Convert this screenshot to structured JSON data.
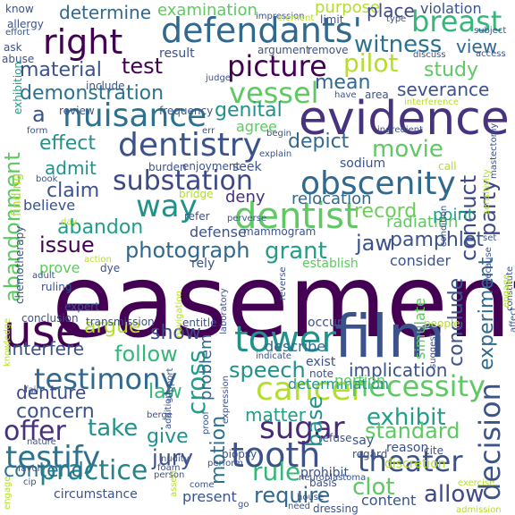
{
  "words": [
    {
      "text": "easement",
      "color": "#440154"
    },
    {
      "text": "evidence",
      "color": "#46327e"
    },
    {
      "text": "film",
      "color": "#3b528b"
    },
    {
      "text": "use",
      "color": "#440154"
    },
    {
      "text": "tower",
      "color": "#21918c"
    },
    {
      "text": "defendants'",
      "color": "#31688e"
    },
    {
      "text": "dentist",
      "color": "#5ec962"
    },
    {
      "text": "right",
      "color": "#440154"
    },
    {
      "text": "cancer",
      "color": "#b5de2b"
    },
    {
      "text": "tooth",
      "color": "#3b528b"
    },
    {
      "text": "obscenity",
      "color": "#31688e"
    },
    {
      "text": "dentistry",
      "color": "#3b528b"
    },
    {
      "text": "nuisance",
      "color": "#2c728e"
    },
    {
      "text": "picture",
      "color": "#440154"
    },
    {
      "text": "necessity",
      "color": "#5ec962"
    },
    {
      "text": "theater",
      "color": "#3b528b"
    },
    {
      "text": "sugar",
      "color": "#482878"
    },
    {
      "text": "testify",
      "color": "#2c728e"
    },
    {
      "text": "substation",
      "color": "#3e4989"
    },
    {
      "text": "way",
      "color": "#21918c"
    },
    {
      "text": "vessel",
      "color": "#5ec962"
    },
    {
      "text": "breast",
      "color": "#35b779"
    },
    {
      "text": "decision",
      "color": "#3b528b"
    },
    {
      "text": "testimony",
      "color": "#31688e"
    },
    {
      "text": "practice",
      "color": "#26828e"
    },
    {
      "text": "cross",
      "color": "#1f9e89"
    },
    {
      "text": "photograph",
      "color": "#31688e"
    },
    {
      "text": "grant",
      "color": "#1f9e89"
    },
    {
      "text": "exhibit",
      "color": "#1f9e89"
    },
    {
      "text": "abandonment",
      "color": "#5ec962"
    },
    {
      "text": "experiment",
      "color": "#31688e"
    },
    {
      "text": "conduct",
      "color": "#3e4989"
    },
    {
      "text": "pilot",
      "color": "#b5de2b"
    },
    {
      "text": "witness",
      "color": "#2c728e"
    },
    {
      "text": "rule",
      "color": "#35b779"
    },
    {
      "text": "allow",
      "color": "#3e4989"
    },
    {
      "text": "movie",
      "color": "#5ec962"
    },
    {
      "text": "speech",
      "color": "#21918c"
    },
    {
      "text": "offer",
      "color": "#46327e"
    },
    {
      "text": "follow",
      "color": "#35b779"
    },
    {
      "text": "party",
      "color": "#3e4989"
    },
    {
      "text": "demonstration",
      "color": "#2c728e"
    },
    {
      "text": "clot",
      "color": "#5ec962"
    },
    {
      "text": "study",
      "color": "#5ec962"
    },
    {
      "text": "material",
      "color": "#3b528b"
    },
    {
      "text": "test",
      "color": "#440154"
    },
    {
      "text": "genital",
      "color": "#21918c"
    },
    {
      "text": "effect",
      "color": "#21918c"
    },
    {
      "text": "claim",
      "color": "#3b528b"
    },
    {
      "text": "abandon",
      "color": "#1f9e89"
    },
    {
      "text": "issue",
      "color": "#440154"
    },
    {
      "text": "record",
      "color": "#6ccd5a"
    },
    {
      "text": "pamphlet",
      "color": "#3b528b"
    },
    {
      "text": "depict",
      "color": "#31688e"
    },
    {
      "text": "argue",
      "color": "#b5de2b"
    },
    {
      "text": "show",
      "color": "#3e4989"
    },
    {
      "text": "concern",
      "color": "#3b528b"
    },
    {
      "text": "take",
      "color": "#21918c"
    },
    {
      "text": "law",
      "color": "#35b779"
    },
    {
      "text": "give",
      "color": "#21918c"
    },
    {
      "text": "jury",
      "color": "#3b528b"
    },
    {
      "text": "require",
      "color": "#31688e"
    },
    {
      "text": "contend",
      "color": "#2c728e"
    },
    {
      "text": "matter",
      "color": "#1f9e89"
    },
    {
      "text": "standard",
      "color": "#5ec962"
    },
    {
      "text": "denture",
      "color": "#3e4989"
    },
    {
      "text": "interfere",
      "color": "#3b528b"
    },
    {
      "text": "motion",
      "color": "#2c728e"
    },
    {
      "text": "base",
      "color": "#21918c"
    },
    {
      "text": "jaw",
      "color": "#3b528b"
    },
    {
      "text": "conclude",
      "color": "#3b528b"
    },
    {
      "text": "implication",
      "color": "#3b528b"
    },
    {
      "text": "severance",
      "color": "#3b528b"
    },
    {
      "text": "determine",
      "color": "#31688e"
    },
    {
      "text": "view",
      "color": "#31688e"
    },
    {
      "text": "mean",
      "color": "#31688e"
    },
    {
      "text": "admit",
      "color": "#21918c"
    },
    {
      "text": "relocation",
      "color": "#31688e"
    },
    {
      "text": "deny",
      "color": "#46327e"
    },
    {
      "text": "radiation",
      "color": "#5ec962"
    },
    {
      "text": "consider",
      "color": "#3b528b"
    },
    {
      "text": "point",
      "color": "#1f9e89"
    },
    {
      "text": "agree",
      "color": "#5ec962"
    },
    {
      "text": "describe",
      "color": "#31688e"
    },
    {
      "text": "examination",
      "color": "#5ec962"
    },
    {
      "text": "purpose",
      "color": "#b5de2b"
    },
    {
      "text": "place",
      "color": "#3e4989"
    },
    {
      "text": "violation",
      "color": "#3b528b"
    },
    {
      "text": "defense",
      "color": "#3b528b"
    },
    {
      "text": "prove",
      "color": "#5ec962"
    },
    {
      "text": "believe",
      "color": "#3b528b"
    },
    {
      "text": "finding",
      "color": "#b5de2b"
    },
    {
      "text": "exhibition",
      "color": "#1f9e89"
    },
    {
      "text": "chemotherapy",
      "color": "#3b528b"
    },
    {
      "text": "problem",
      "color": "#31688e"
    },
    {
      "text": "determination",
      "color": "#21918c"
    },
    {
      "text": "portion",
      "color": "#5ec962"
    },
    {
      "text": "simulate",
      "color": "#5ec962"
    },
    {
      "text": "establish",
      "color": "#5ec962"
    },
    {
      "text": "sodium",
      "color": "#3b528b"
    },
    {
      "text": "enjoyment",
      "color": "#3b528b"
    },
    {
      "text": "burden",
      "color": "#3b528b"
    },
    {
      "text": "result",
      "color": "#3b528b"
    },
    {
      "text": "remove",
      "color": "#3b528b"
    },
    {
      "text": "argument",
      "color": "#3b528b"
    },
    {
      "text": "frequency",
      "color": "#3b528b"
    },
    {
      "text": "review",
      "color": "#3b528b"
    },
    {
      "text": "include",
      "color": "#3b528b"
    },
    {
      "text": "mammogram",
      "color": "#3b528b"
    },
    {
      "text": "transmission",
      "color": "#3b528b"
    },
    {
      "text": "conclusion",
      "color": "#3b528b"
    },
    {
      "text": "ruling",
      "color": "#3b528b"
    },
    {
      "text": "expert",
      "color": "#3b528b"
    },
    {
      "text": "entitle",
      "color": "#3b528b"
    },
    {
      "text": "occur",
      "color": "#3b528b"
    },
    {
      "text": "exist",
      "color": "#3b528b"
    },
    {
      "text": "note",
      "color": "#3b528b"
    },
    {
      "text": "prohibit",
      "color": "#3b528b"
    },
    {
      "text": "basis",
      "color": "#3b528b"
    },
    {
      "text": "biopsy",
      "color": "#3b528b"
    },
    {
      "text": "refuse",
      "color": "#3b528b"
    },
    {
      "text": "say",
      "color": "#3b528b"
    },
    {
      "text": "regard",
      "color": "#3b528b"
    },
    {
      "text": "reason",
      "color": "#3b528b"
    },
    {
      "text": "present",
      "color": "#3b528b"
    },
    {
      "text": "circumstance",
      "color": "#3b528b"
    },
    {
      "text": "content",
      "color": "#3b528b"
    },
    {
      "text": "discretion",
      "color": "#b5de2b"
    },
    {
      "text": "people",
      "color": "#b5de2b"
    },
    {
      "text": "call",
      "color": "#b5de2b"
    },
    {
      "text": "seek",
      "color": "#3b528b"
    },
    {
      "text": "refer",
      "color": "#3b528b"
    },
    {
      "text": "rely",
      "color": "#3b528b"
    },
    {
      "text": "dye",
      "color": "#3b528b"
    },
    {
      "text": "bridge",
      "color": "#b5de2b"
    },
    {
      "text": "knowledge",
      "color": "#b5de2b"
    },
    {
      "text": "engage",
      "color": "#b5de2b"
    },
    {
      "text": "assert",
      "color": "#b5de2b"
    },
    {
      "text": "area",
      "color": "#3b528b"
    },
    {
      "text": "abuse",
      "color": "#3b528b"
    },
    {
      "text": "know",
      "color": "#3b528b"
    },
    {
      "text": "allergy",
      "color": "#3b528b"
    },
    {
      "text": "effort",
      "color": "#3b528b"
    },
    {
      "text": "ask",
      "color": "#3b528b"
    },
    {
      "text": "impression",
      "color": "#3b528b"
    },
    {
      "text": "element",
      "color": "#b5de2b"
    },
    {
      "text": "limit",
      "color": "#3b528b"
    },
    {
      "text": "type",
      "color": "#3b528b"
    },
    {
      "text": "subject",
      "color": "#3b528b"
    },
    {
      "text": "discuss",
      "color": "#3b528b"
    },
    {
      "text": "access",
      "color": "#3b528b"
    },
    {
      "text": "judge",
      "color": "#3b528b"
    },
    {
      "text": "have",
      "color": "#3b528b"
    },
    {
      "text": "interference",
      "color": "#b5de2b"
    },
    {
      "text": "mastectomy",
      "color": "#3b528b"
    },
    {
      "text": "sensitivity",
      "color": "#b5de2b"
    },
    {
      "text": "ingredient",
      "color": "#3b528b"
    },
    {
      "text": "begin",
      "color": "#3b528b"
    },
    {
      "text": "err",
      "color": "#3b528b"
    },
    {
      "text": "form",
      "color": "#3b528b"
    },
    {
      "text": "book",
      "color": "#3b528b"
    },
    {
      "text": "day",
      "color": "#b5de2b"
    },
    {
      "text": "action",
      "color": "#b5de2b"
    },
    {
      "text": "adult",
      "color": "#3b528b"
    },
    {
      "text": "condition",
      "color": "#3b528b"
    },
    {
      "text": "set",
      "color": "#3b528b"
    },
    {
      "text": "because",
      "color": "#3b528b"
    },
    {
      "text": "constitute",
      "color": "#3b528b"
    },
    {
      "text": "affect",
      "color": "#3b528b"
    },
    {
      "text": "suggest",
      "color": "#3b528b"
    },
    {
      "text": "indicate",
      "color": "#3b528b"
    },
    {
      "text": "expression",
      "color": "#3b528b"
    },
    {
      "text": "laboratory",
      "color": "#3b528b"
    },
    {
      "text": "reverse",
      "color": "#3b528b"
    },
    {
      "text": "navigation",
      "color": "#b5de2b"
    },
    {
      "text": "fail",
      "color": "#3b528b"
    },
    {
      "text": "nature",
      "color": "#3b528b"
    },
    {
      "text": "favor",
      "color": "#3b528b"
    },
    {
      "text": "cip",
      "color": "#3b528b"
    },
    {
      "text": "person",
      "color": "#3b528b"
    },
    {
      "text": "foam",
      "color": "#3b528b"
    },
    {
      "text": "nudity",
      "color": "#3b528b"
    },
    {
      "text": "addition",
      "color": "#3b528b"
    },
    {
      "text": "proof",
      "color": "#3b528b"
    },
    {
      "text": "perform",
      "color": "#3b528b"
    },
    {
      "text": "neuroblastoma",
      "color": "#3b528b"
    },
    {
      "text": "go",
      "color": "#3b528b"
    },
    {
      "text": "need",
      "color": "#3b528b"
    },
    {
      "text": "dressing",
      "color": "#3b528b"
    },
    {
      "text": "cite",
      "color": "#3b528b"
    },
    {
      "text": "admission",
      "color": "#b5de2b"
    },
    {
      "text": "exercise",
      "color": "#b5de2b"
    },
    {
      "text": "perverse",
      "color": "#3b528b"
    },
    {
      "text": "explain",
      "color": "#3b528b"
    },
    {
      "text": "engage",
      "color": "#b5de2b"
    },
    {
      "text": "support",
      "color": "#3b528b"
    },
    {
      "text": "berge",
      "color": "#3b528b"
    },
    {
      "text": "come",
      "color": "#3b528b"
    },
    {
      "text": "house",
      "color": "#3b528b"
    },
    {
      "text": "a",
      "color": "#3b528b"
    }
  ]
}
